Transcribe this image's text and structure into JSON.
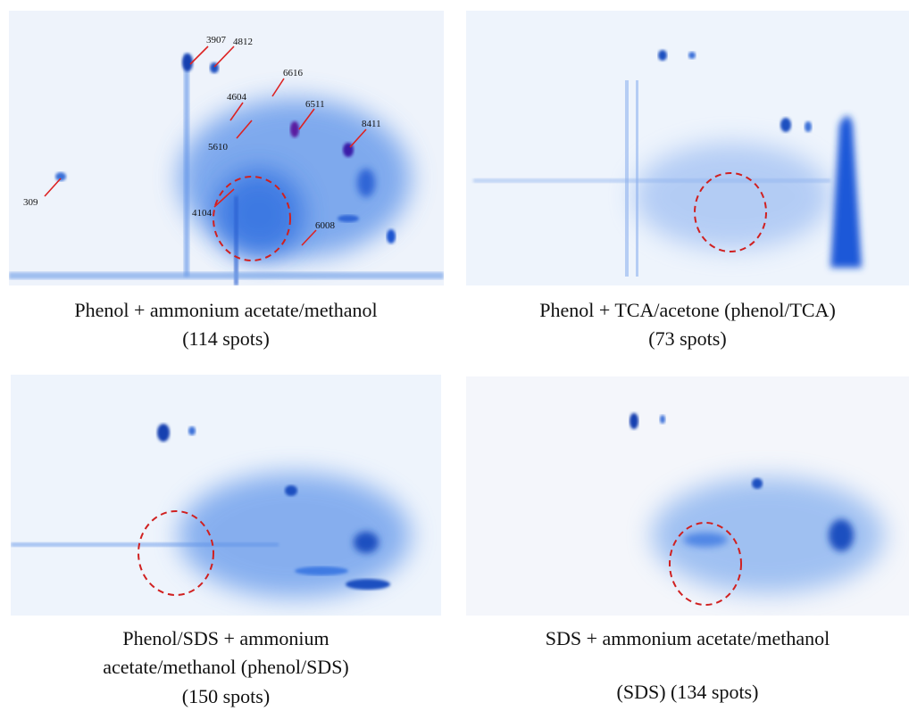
{
  "panels": [
    {
      "caption": [
        "Phenol + ammonium acetate/methanol",
        "(114 spots)"
      ],
      "spot_labels": [
        "3907",
        "4812",
        "6616",
        "4604",
        "6511",
        "5610",
        "8411",
        "309",
        "4104",
        "6008"
      ]
    },
    {
      "caption": [
        "Phenol + TCA/acetone (phenol/TCA)",
        "(73 spots)"
      ]
    },
    {
      "caption": [
        "Phenol/SDS + ammonium",
        "acetate/methanol (phenol/SDS)",
        "(150 spots)"
      ]
    },
    {
      "caption": [
        "SDS + ammonium acetate/methanol",
        "(SDS) (134 spots)"
      ]
    }
  ]
}
